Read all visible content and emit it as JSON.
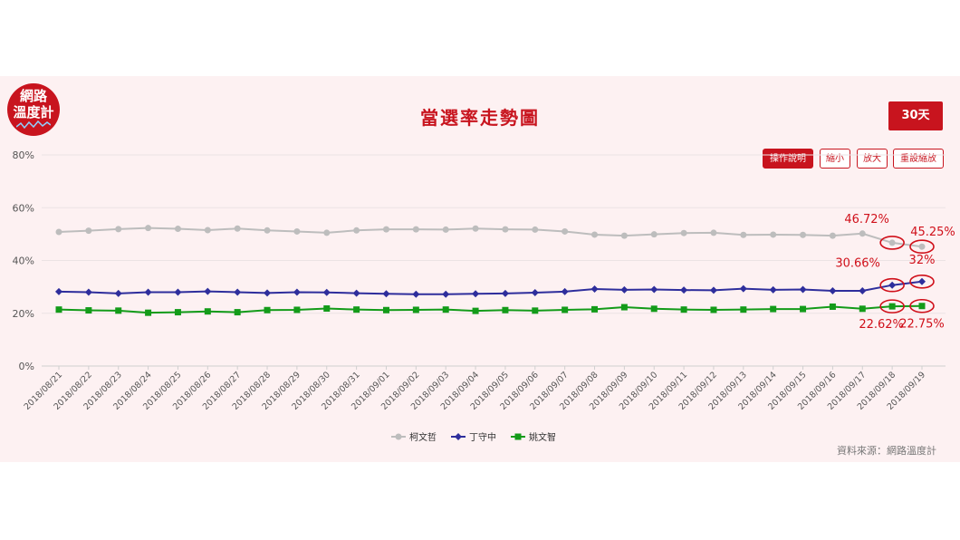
{
  "logo": {
    "line1": "網路",
    "line2": "溫度計"
  },
  "title": "當選率走勢圖",
  "range_button": "30天",
  "toolbar": {
    "help": "操作說明",
    "zoom_out": "縮小",
    "zoom_in": "放大",
    "reset": "重設縮放"
  },
  "source": "資料來源：網路溫度計",
  "colors": {
    "accent": "#c8141e",
    "ko": "#bdbdbd",
    "ding": "#2e2e9c",
    "yao": "#139b19",
    "highlight": "#d0101a"
  },
  "chart_data": {
    "type": "line",
    "x": [
      "2018/08/21",
      "2018/08/22",
      "2018/08/23",
      "2018/08/24",
      "2018/08/25",
      "2018/08/26",
      "2018/08/27",
      "2018/08/28",
      "2018/08/29",
      "2018/08/30",
      "2018/08/31",
      "2018/09/01",
      "2018/09/02",
      "2018/09/03",
      "2018/09/04",
      "2018/09/05",
      "2018/09/06",
      "2018/09/07",
      "2018/09/08",
      "2018/09/09",
      "2018/09/10",
      "2018/09/11",
      "2018/09/12",
      "2018/09/13",
      "2018/09/14",
      "2018/09/15",
      "2018/09/16",
      "2018/09/17",
      "2018/09/18",
      "2018/09/19"
    ],
    "ylim": [
      0,
      80
    ],
    "yticks": [
      "0%",
      "20%",
      "40%",
      "60%",
      "80%"
    ],
    "grid": true,
    "legend_position": "bottom",
    "series": [
      {
        "name": "柯文哲",
        "color": "#bdbdbd",
        "marker": "circle",
        "values": [
          50.8,
          51.3,
          51.9,
          52.3,
          52.0,
          51.5,
          52.1,
          51.4,
          51.0,
          50.5,
          51.4,
          51.8,
          51.8,
          51.7,
          52.1,
          51.8,
          51.7,
          51.0,
          49.8,
          49.4,
          49.9,
          50.4,
          50.5,
          49.7,
          49.8,
          49.7,
          49.4,
          50.2,
          46.72,
          45.25
        ]
      },
      {
        "name": "丁守中",
        "color": "#2e2e9c",
        "marker": "diamond",
        "values": [
          28.2,
          28.0,
          27.5,
          28.0,
          28.0,
          28.3,
          28.0,
          27.7,
          28.0,
          27.9,
          27.6,
          27.4,
          27.2,
          27.2,
          27.4,
          27.5,
          27.8,
          28.2,
          29.2,
          28.9,
          29.0,
          28.8,
          28.7,
          29.3,
          28.9,
          29.0,
          28.5,
          28.5,
          30.66,
          32
        ]
      },
      {
        "name": "姚文智",
        "color": "#139b19",
        "marker": "square",
        "values": [
          21.4,
          21.1,
          21.0,
          20.2,
          20.4,
          20.7,
          20.4,
          21.2,
          21.3,
          21.8,
          21.4,
          21.2,
          21.3,
          21.4,
          20.9,
          21.2,
          21.0,
          21.3,
          21.5,
          22.3,
          21.7,
          21.4,
          21.3,
          21.4,
          21.6,
          21.6,
          22.5,
          21.7,
          22.62,
          22.75
        ]
      }
    ],
    "annotations": [
      {
        "label": "46.72%",
        "series": 0,
        "index": 28,
        "color": "#d0101a"
      },
      {
        "label": "45.25%",
        "series": 0,
        "index": 29,
        "color": "#d0101a"
      },
      {
        "label": "30.66%",
        "series": 1,
        "index": 28,
        "color": "#d0101a"
      },
      {
        "label": "32%",
        "series": 1,
        "index": 29,
        "color": "#d0101a"
      },
      {
        "label": "22.62%",
        "series": 2,
        "index": 28,
        "color": "#d0101a"
      },
      {
        "label": "22.75%",
        "series": 2,
        "index": 29,
        "color": "#d0101a"
      }
    ]
  }
}
